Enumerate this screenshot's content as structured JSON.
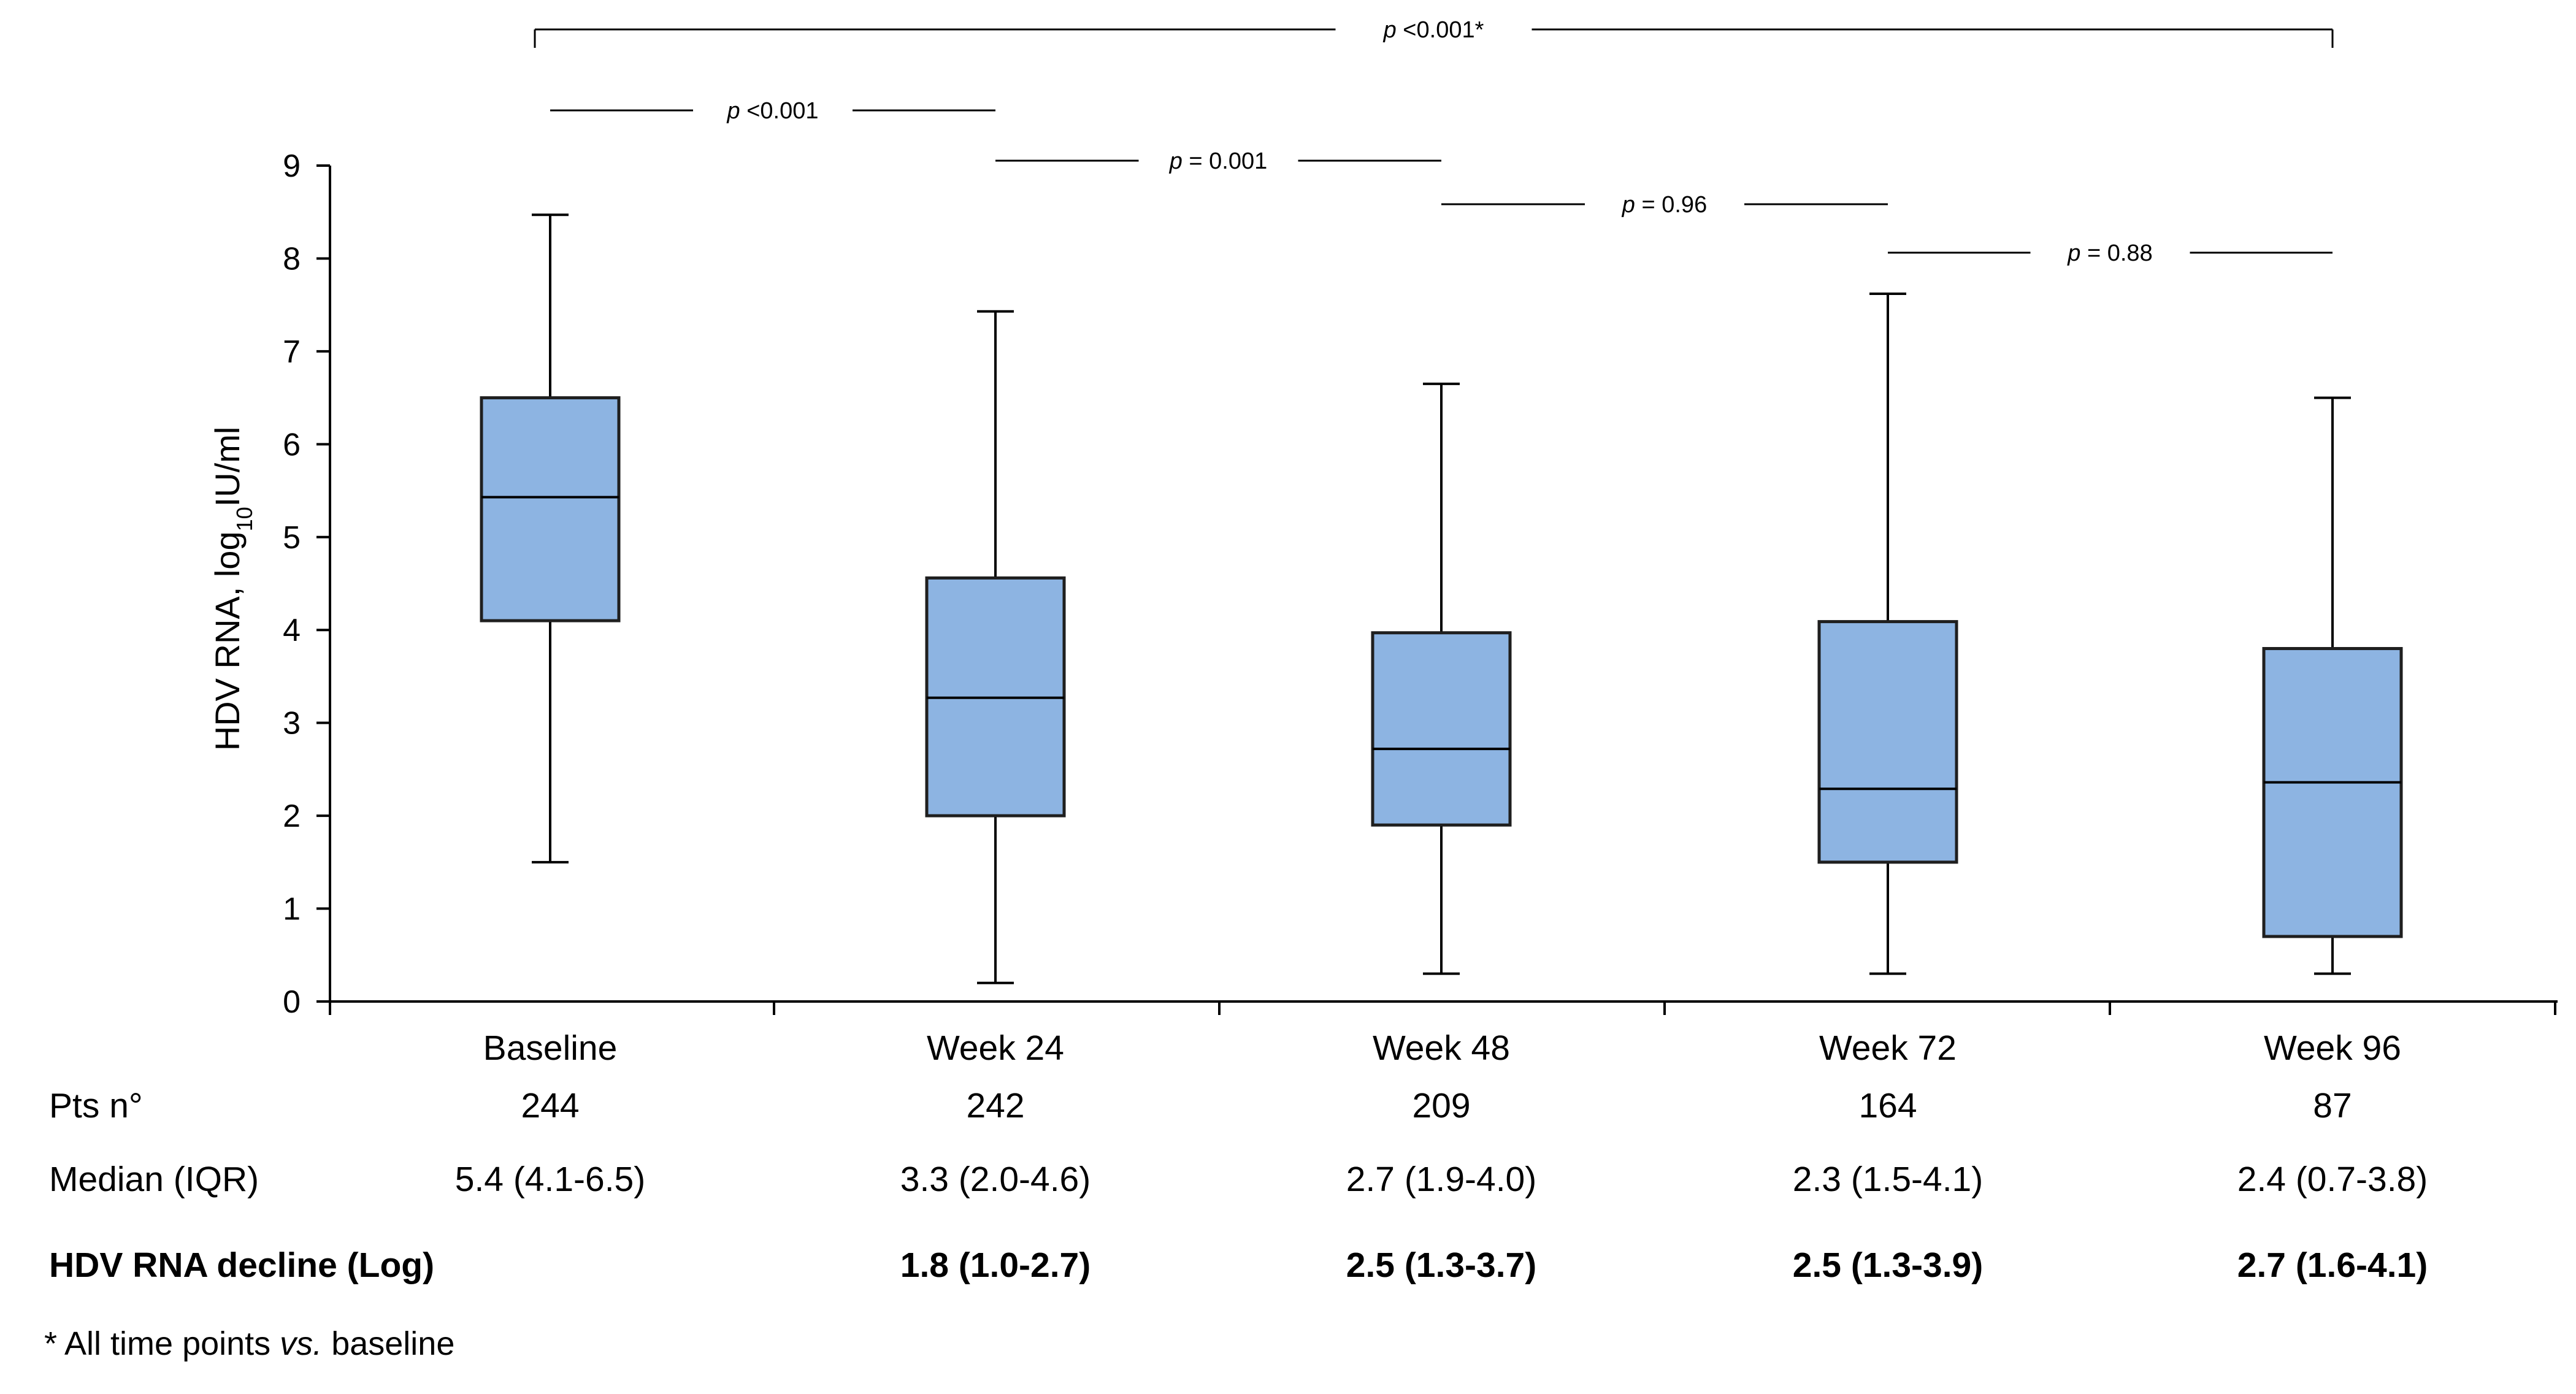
{
  "chart_data": {
    "type": "box",
    "ylabel_main": "HDV RNA, log",
    "ylabel_sub": "10",
    "ylabel_tail": "IU/ml",
    "ylim": [
      0,
      9
    ],
    "yticks": [
      "0",
      "1",
      "2",
      "3",
      "4",
      "5",
      "6",
      "7",
      "8",
      "9"
    ],
    "categories": [
      "Baseline",
      "Week 24",
      "Week 48",
      "Week 72",
      "Week 96"
    ],
    "boxes": [
      {
        "min": 1.5,
        "q1": 4.1,
        "median": 5.43,
        "q3": 6.5,
        "max": 8.47
      },
      {
        "min": 0.2,
        "q1": 2.0,
        "median": 3.27,
        "q3": 4.56,
        "max": 7.43
      },
      {
        "min": 0.3,
        "q1": 1.9,
        "median": 2.72,
        "q3": 3.97,
        "max": 6.65
      },
      {
        "min": 0.3,
        "q1": 1.5,
        "median": 2.29,
        "q3": 4.09,
        "max": 7.62
      },
      {
        "min": 0.3,
        "q1": 0.7,
        "median": 2.36,
        "q3": 3.8,
        "max": 6.5
      }
    ],
    "box_fill": "#8db4e2",
    "box_stroke": "#1f1f1f",
    "comparisons": [
      {
        "from": 0,
        "to": 4,
        "p_prefix": "p",
        "p_text": " <0.001*",
        "bracket": true
      },
      {
        "from": 0,
        "to": 1,
        "p_prefix": "p",
        "p_text": " <0.001",
        "bracket": false
      },
      {
        "from": 1,
        "to": 2,
        "p_prefix": "p",
        "p_text": " = 0.001",
        "bracket": false
      },
      {
        "from": 2,
        "to": 3,
        "p_prefix": "p",
        "p_text": " = 0.96",
        "bracket": false
      },
      {
        "from": 3,
        "to": 4,
        "p_prefix": "p",
        "p_text": " = 0.88",
        "bracket": false
      }
    ]
  },
  "table": {
    "pts_label": "Pts n°",
    "pts": [
      "244",
      "242",
      "209",
      "164",
      "87"
    ],
    "median_label": "Median (IQR)",
    "median": [
      "5.4  (4.1-6.5)",
      "3.3  (2.0-4.6)",
      "2.7 (1.9-4.0)",
      "2.3 (1.5-4.1)",
      "2.4 (0.7-3.8)"
    ],
    "decline_label": "HDV RNA decline (Log)",
    "decline": [
      "",
      "1.8 (1.0-2.7)",
      "2.5 (1.3-3.7)",
      "2.5 (1.3-3.9)",
      "2.7 (1.6-4.1)"
    ]
  },
  "footnote": {
    "prefix": "* All time points ",
    "italic": "vs.",
    "suffix": " baseline"
  }
}
